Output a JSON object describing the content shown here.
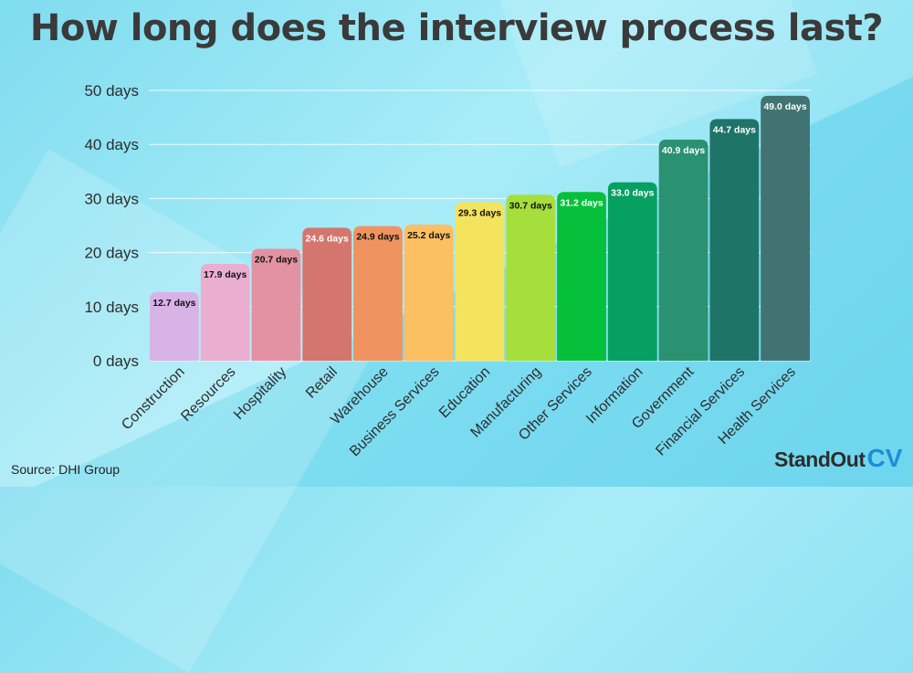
{
  "title": "How long does the interview process last?",
  "source": "Source: DHI Group",
  "logo": {
    "part1": "StandOut",
    "part2": "CV",
    "accent_color": "#1a8fd6"
  },
  "chart_data": {
    "type": "bar",
    "title": "How long does the interview process last?",
    "xlabel": "",
    "ylabel": "",
    "ylim": [
      0,
      50
    ],
    "yticks": [
      0,
      10,
      20,
      30,
      40,
      50
    ],
    "ytick_labels": [
      "0 days",
      "10 days",
      "20 days",
      "30 days",
      "40 days",
      "50 days"
    ],
    "grid": true,
    "categories": [
      "Construction",
      "Resources",
      "Hospitality",
      "Retail",
      "Warehouse",
      "Business Services",
      "Education",
      "Manufacturing",
      "Other Services",
      "Information",
      "Government",
      "Financial Services",
      "Health Services"
    ],
    "values": [
      12.7,
      17.9,
      20.7,
      24.6,
      24.9,
      25.2,
      29.3,
      30.7,
      31.2,
      33.0,
      40.9,
      44.7,
      49.0
    ],
    "data_labels": [
      "12.7 days",
      "17.9 days",
      "20.7 days",
      "24.6 days",
      "24.9 days",
      "25.2 days",
      "29.3 days",
      "30.7 days",
      "31.2 days",
      "33.0 days",
      "40.9 days",
      "44.7 days",
      "49.0 days"
    ],
    "colors": [
      "#d8b3e6",
      "#e9aed0",
      "#e392a4",
      "#d4766e",
      "#ef9360",
      "#fcbf61",
      "#f4e35c",
      "#a6df3c",
      "#06c03b",
      "#06a062",
      "#2a9270",
      "#1f7468",
      "#417373"
    ],
    "label_colors": [
      "#111111",
      "#111111",
      "#111111",
      "#ffffff",
      "#111111",
      "#111111",
      "#111111",
      "#111111",
      "#ffffff",
      "#ffffff",
      "#ffffff",
      "#ffffff",
      "#ffffff"
    ]
  }
}
